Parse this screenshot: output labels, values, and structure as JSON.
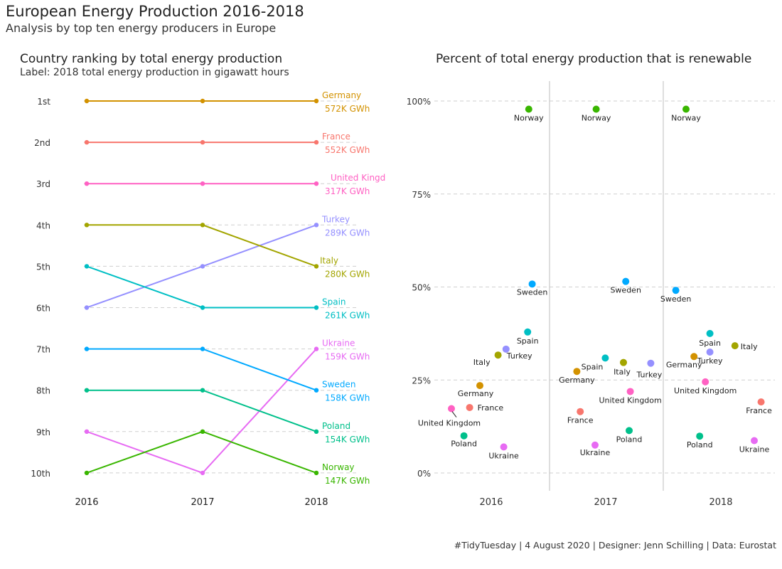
{
  "header": {
    "title": "European Energy Production 2016-2018",
    "subtitle": "Analysis by top ten energy producers in Europe"
  },
  "caption": "#TidyTuesday | 4 August 2020 | Designer: Jenn Schilling | Data: Eurostat",
  "chart_data": [
    {
      "type": "line",
      "title": "Country ranking by total energy production",
      "subtitle": "Label: 2018 total energy production in gigawatt hours",
      "x": [
        "2016",
        "2017",
        "2018"
      ],
      "y_tick_labels": [
        "1st",
        "2nd",
        "3rd",
        "4th",
        "5th",
        "6th",
        "7th",
        "8th",
        "9th",
        "10th"
      ],
      "ylim": [
        1,
        10
      ],
      "y_reversed": true,
      "grid": "dashed horizontal",
      "series": [
        {
          "name": "Germany",
          "ranks": [
            1,
            1,
            1
          ],
          "label": "572K GWh",
          "color": "#D39200"
        },
        {
          "name": "France",
          "ranks": [
            2,
            2,
            2
          ],
          "label": "552K GWh",
          "color": "#F8766D"
        },
        {
          "name": "United Kingd",
          "ranks": [
            3,
            3,
            3
          ],
          "label": "317K GWh",
          "color": "#FF61C3"
        },
        {
          "name": "Turkey",
          "ranks": [
            6,
            5,
            4
          ],
          "label": "289K GWh",
          "color": "#9590FF"
        },
        {
          "name": "Italy",
          "ranks": [
            4,
            4,
            5
          ],
          "label": "280K GWh",
          "color": "#A3A500"
        },
        {
          "name": "Spain",
          "ranks": [
            5,
            6,
            6
          ],
          "label": "261K GWh",
          "color": "#00BFC4"
        },
        {
          "name": "Ukraine",
          "ranks": [
            9,
            10,
            7
          ],
          "label": "159K GWh",
          "color": "#E76BF3"
        },
        {
          "name": "Sweden",
          "ranks": [
            7,
            7,
            8
          ],
          "label": "158K GWh",
          "color": "#00A9FF"
        },
        {
          "name": "Poland",
          "ranks": [
            8,
            8,
            9
          ],
          "label": "154K GWh",
          "color": "#00C08B"
        },
        {
          "name": "Norway",
          "ranks": [
            10,
            9,
            10
          ],
          "label": "147K GWh",
          "color": "#39B600"
        }
      ]
    },
    {
      "type": "scatter",
      "title": "Percent of total energy production that is renewable",
      "categories": [
        "2016",
        "2017",
        "2018"
      ],
      "y_tick_labels": [
        "0%",
        "25%",
        "50%",
        "75%",
        "100%"
      ],
      "ylim": [
        0,
        100
      ],
      "grid": "dashed horizontal",
      "points": [
        {
          "year": "2016",
          "label": "Norway",
          "y": 97.8,
          "color": "#39B600"
        },
        {
          "year": "2016",
          "label": "Sweden",
          "y": 50.8,
          "color": "#00A9FF"
        },
        {
          "year": "2016",
          "label": "Spain",
          "y": 37.9,
          "color": "#00BFC4"
        },
        {
          "year": "2016",
          "label": "Turkey",
          "y": 33.3,
          "color": "#9590FF"
        },
        {
          "year": "2016",
          "label": "Italy",
          "y": 31.7,
          "color": "#A3A500"
        },
        {
          "year": "2016",
          "label": "Germany",
          "y": 23.5,
          "color": "#D39200"
        },
        {
          "year": "2016",
          "label": "France",
          "y": 17.6,
          "color": "#F8766D"
        },
        {
          "year": "2016",
          "label": "United Kingdom",
          "y": 17.3,
          "color": "#FF61C3"
        },
        {
          "year": "2016",
          "label": "Poland",
          "y": 10.0,
          "color": "#00C08B"
        },
        {
          "year": "2016",
          "label": "Ukraine",
          "y": 7.0,
          "color": "#E76BF3"
        },
        {
          "year": "2017",
          "label": "Norway",
          "y": 97.8,
          "color": "#39B600"
        },
        {
          "year": "2017",
          "label": "Sweden",
          "y": 51.5,
          "color": "#00A9FF"
        },
        {
          "year": "2017",
          "label": "Spain",
          "y": 30.9,
          "color": "#00BFC4"
        },
        {
          "year": "2017",
          "label": "Italy",
          "y": 29.7,
          "color": "#A3A500"
        },
        {
          "year": "2017",
          "label": "Turkey",
          "y": 29.5,
          "color": "#9590FF"
        },
        {
          "year": "2017",
          "label": "Germany",
          "y": 27.3,
          "color": "#D39200"
        },
        {
          "year": "2017",
          "label": "United Kingdom",
          "y": 21.9,
          "color": "#FF61C3"
        },
        {
          "year": "2017",
          "label": "France",
          "y": 16.5,
          "color": "#F8766D"
        },
        {
          "year": "2017",
          "label": "Poland",
          "y": 11.4,
          "color": "#00C08B"
        },
        {
          "year": "2017",
          "label": "Ukraine",
          "y": 7.5,
          "color": "#E76BF3"
        },
        {
          "year": "2018",
          "label": "Norway",
          "y": 97.8,
          "color": "#39B600"
        },
        {
          "year": "2018",
          "label": "Sweden",
          "y": 49.1,
          "color": "#00A9FF"
        },
        {
          "year": "2018",
          "label": "Spain",
          "y": 37.5,
          "color": "#00BFC4"
        },
        {
          "year": "2018",
          "label": "Italy",
          "y": 34.2,
          "color": "#A3A500"
        },
        {
          "year": "2018",
          "label": "Turkey",
          "y": 32.5,
          "color": "#9590FF"
        },
        {
          "year": "2018",
          "label": "Germany",
          "y": 31.3,
          "color": "#D39200"
        },
        {
          "year": "2018",
          "label": "United Kingdom",
          "y": 24.5,
          "color": "#FF61C3"
        },
        {
          "year": "2018",
          "label": "France",
          "y": 19.1,
          "color": "#F8766D"
        },
        {
          "year": "2018",
          "label": "Poland",
          "y": 9.9,
          "color": "#00C08B"
        },
        {
          "year": "2018",
          "label": "Ukraine",
          "y": 8.7,
          "color": "#E76BF3"
        }
      ]
    }
  ]
}
